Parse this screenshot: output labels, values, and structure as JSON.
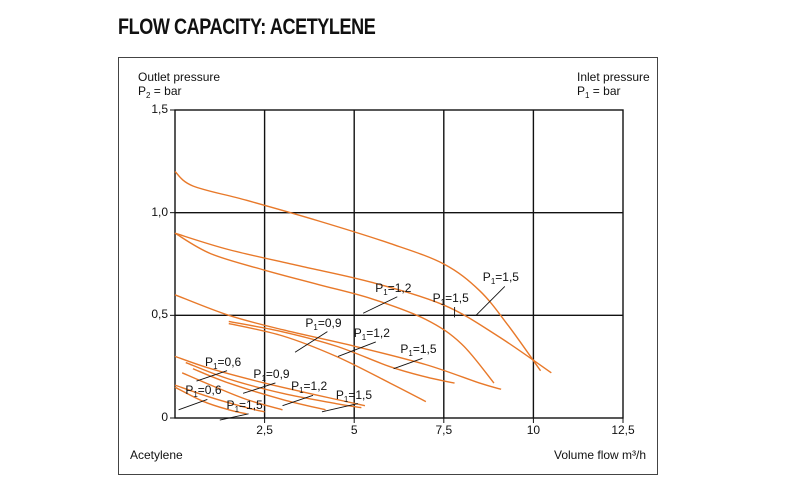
{
  "title": "FLOW CAPACITY: ACETYLENE",
  "chart_data": {
    "type": "line",
    "gas_label": "Acetylene",
    "xlabel": "Volume flow m³/h",
    "ylabel": {
      "line1": "Outlet pressure",
      "symbol": "P",
      "sub": "2",
      "unit": " = bar"
    },
    "right_label": {
      "line1": "Inlet pressure",
      "symbol": "P",
      "sub": "1",
      "unit": " = bar"
    },
    "xlim": [
      0,
      12.5
    ],
    "ylim": [
      0,
      1.5
    ],
    "xticks": [
      {
        "value": 2.5,
        "label": "2,5"
      },
      {
        "value": 5,
        "label": "5"
      },
      {
        "value": 7.5,
        "label": "7,5"
      },
      {
        "value": 10,
        "label": "10"
      },
      {
        "value": 12.5,
        "label": "12,5"
      }
    ],
    "yticks": [
      {
        "value": 0,
        "label": "0"
      },
      {
        "value": 0.5,
        "label": "0,5"
      },
      {
        "value": 1.0,
        "label": "1,0"
      },
      {
        "value": 1.5,
        "label": "1,5"
      }
    ],
    "grid": true,
    "line_color": "#e8792a",
    "series": [
      {
        "group": 1,
        "label": {
          "symbol": "P",
          "sub": "1",
          "value": "=1,5"
        },
        "label_at": [
          8.7,
          0.66
        ],
        "leader_end": [
          8.4,
          0.5
        ],
        "values": [
          [
            0,
            1.2
          ],
          [
            0.5,
            1.13
          ],
          [
            2,
            1.06
          ],
          [
            4,
            0.96
          ],
          [
            6,
            0.85
          ],
          [
            7.5,
            0.75
          ],
          [
            8.5,
            0.62
          ],
          [
            9.3,
            0.45
          ],
          [
            10.2,
            0.23
          ]
        ]
      },
      {
        "group": 1,
        "label": {
          "symbol": "P",
          "sub": "1",
          "value": "=1,5"
        },
        "label_at": [
          7.3,
          0.56
        ],
        "leader_end": [
          7.8,
          0.49
        ],
        "values": [
          [
            0,
            0.9
          ],
          [
            1.5,
            0.82
          ],
          [
            3.5,
            0.74
          ],
          [
            5.5,
            0.66
          ],
          [
            7.5,
            0.55
          ],
          [
            9,
            0.4
          ],
          [
            10.5,
            0.22
          ]
        ]
      },
      {
        "group": 1,
        "label": {
          "symbol": "P",
          "sub": "1",
          "value": "=1,2"
        },
        "label_at": [
          5.7,
          0.61
        ],
        "leader_end": [
          5.25,
          0.51
        ],
        "values": [
          [
            0,
            0.9
          ],
          [
            1,
            0.8
          ],
          [
            2.5,
            0.72
          ],
          [
            4,
            0.65
          ],
          [
            5.5,
            0.58
          ],
          [
            7,
            0.48
          ],
          [
            8,
            0.36
          ],
          [
            8.9,
            0.17
          ]
        ]
      },
      {
        "group": 2,
        "label": {
          "symbol": "P",
          "sub": "1",
          "value": "=1,5"
        },
        "label_at": [
          6.4,
          0.31
        ],
        "leader_end": [
          6.1,
          0.24
        ],
        "values": [
          [
            0,
            0.6
          ],
          [
            1.5,
            0.5
          ],
          [
            3,
            0.43
          ],
          [
            5,
            0.35
          ],
          [
            7,
            0.26
          ],
          [
            8.5,
            0.17
          ],
          [
            9.1,
            0.14
          ]
        ]
      },
      {
        "group": 2,
        "label": {
          "symbol": "P",
          "sub": "1",
          "value": "=1,2"
        },
        "label_at": [
          5.1,
          0.39
        ],
        "leader_end": [
          4.55,
          0.3
        ],
        "values": [
          [
            1.5,
            0.47
          ],
          [
            3,
            0.42
          ],
          [
            4.5,
            0.35
          ],
          [
            6,
            0.25
          ],
          [
            7,
            0.2
          ],
          [
            7.8,
            0.17
          ]
        ]
      },
      {
        "group": 2,
        "label": {
          "symbol": "P",
          "sub": "1",
          "value": "=0,9"
        },
        "label_at": [
          3.75,
          0.44
        ],
        "leader_end": [
          3.35,
          0.32
        ],
        "values": [
          [
            1.5,
            0.46
          ],
          [
            3,
            0.4
          ],
          [
            4.5,
            0.3
          ],
          [
            6,
            0.17
          ],
          [
            7,
            0.08
          ]
        ]
      },
      {
        "group": 3,
        "label": {
          "symbol": "P",
          "sub": "1",
          "value": "=1,5"
        },
        "label_at": [
          4.6,
          0.09
        ],
        "leader_end": [
          4.1,
          0.03
        ],
        "values": [
          [
            0,
            0.3
          ],
          [
            1,
            0.24
          ],
          [
            2.5,
            0.17
          ],
          [
            4,
            0.11
          ],
          [
            5.3,
            0.06
          ]
        ]
      },
      {
        "group": 3,
        "label": {
          "symbol": "P",
          "sub": "1",
          "value": "=1,2"
        },
        "label_at": [
          3.35,
          0.13
        ],
        "leader_end": [
          3.0,
          0.06
        ],
        "values": [
          [
            0.3,
            0.27
          ],
          [
            1.5,
            0.19
          ],
          [
            3,
            0.12
          ],
          [
            4.5,
            0.07
          ],
          [
            5.2,
            0.05
          ]
        ]
      },
      {
        "group": 3,
        "label": {
          "symbol": "P",
          "sub": "1",
          "value": "=0,9"
        },
        "label_at": [
          2.3,
          0.19
        ],
        "leader_end": [
          1.9,
          0.12
        ],
        "values": [
          [
            0.5,
            0.24
          ],
          [
            1.5,
            0.17
          ],
          [
            3,
            0.09
          ],
          [
            4.2,
            0.04
          ]
        ]
      },
      {
        "group": 3,
        "label": {
          "symbol": "P",
          "sub": "1",
          "value": "=0,6"
        },
        "label_at": [
          0.95,
          0.25
        ],
        "leader_end": [
          0.6,
          0.18
        ],
        "values": [
          [
            0.2,
            0.22
          ],
          [
            1,
            0.16
          ],
          [
            2,
            0.09
          ],
          [
            3,
            0.04
          ]
        ]
      },
      {
        "group": 4,
        "label": {
          "symbol": "P",
          "sub": "1",
          "value": "=1,5"
        },
        "label_at": [
          1.55,
          0.04
        ],
        "leader_end": [
          1.25,
          -0.01
        ],
        "values": [
          [
            0,
            0.16
          ],
          [
            1,
            0.1
          ],
          [
            2,
            0.05
          ],
          [
            2.5,
            0.03
          ]
        ]
      },
      {
        "group": 4,
        "label": {
          "symbol": "P",
          "sub": "1",
          "value": "=0,6"
        },
        "label_at": [
          0.4,
          0.11
        ],
        "leader_end": [
          0.1,
          0.04
        ],
        "values": [
          [
            0,
            0.15
          ],
          [
            0.8,
            0.08
          ],
          [
            1.5,
            0.04
          ],
          [
            2,
            0.02
          ]
        ]
      }
    ]
  }
}
